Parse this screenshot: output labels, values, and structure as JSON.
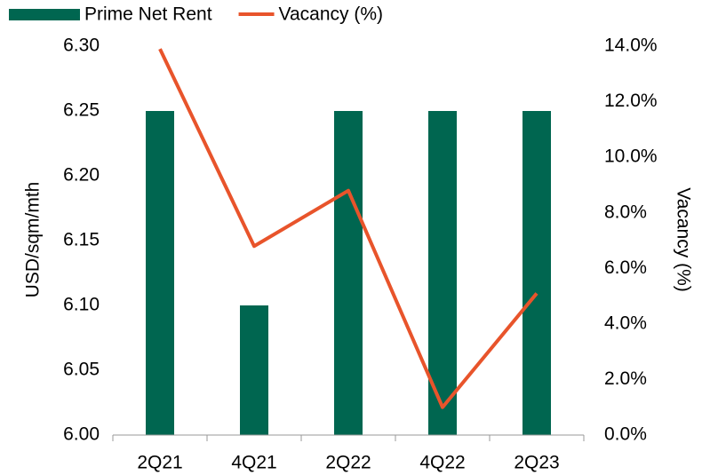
{
  "chart_data": {
    "type": "bar_line",
    "categories": [
      "2Q21",
      "4Q21",
      "2Q22",
      "4Q22",
      "2Q23"
    ],
    "series": [
      {
        "name": "Prime Net Rent",
        "color": "#006650",
        "type": "bar",
        "values": [
          6.25,
          6.1,
          6.25,
          6.25,
          6.25
        ]
      },
      {
        "name": "Vacancy (%)",
        "color": "#e8542b",
        "type": "line",
        "axis": "y2",
        "values": [
          13.9,
          6.8,
          8.8,
          1.0,
          5.1
        ]
      }
    ],
    "ylabel": "USD/sqm/mth",
    "y2label": "Vacancy (%)",
    "ylim": [
      6.0,
      6.3
    ],
    "yticks": [
      {
        "value": 6.0,
        "label": "6.00"
      },
      6.05,
      {
        "value": 6.1,
        "label": "6.10"
      },
      6.15,
      {
        "value": 6.2,
        "label": "6.20"
      },
      6.25,
      {
        "value": 6.3,
        "label": "6.30"
      }
    ],
    "y2lim": [
      0,
      14
    ],
    "y2ticks": [
      {
        "value": 0,
        "label": "0.0%"
      },
      {
        "value": 2,
        "label": "2.0%"
      },
      {
        "value": 4,
        "label": "4.0%"
      },
      {
        "value": 6,
        "label": "6.0%"
      },
      {
        "value": 8,
        "label": "8.0%"
      },
      {
        "value": 10,
        "label": "10.0%"
      },
      {
        "value": 12,
        "label": "12.0%"
      },
      {
        "value": 14,
        "label": "14.0%"
      }
    ],
    "legend": "top-left"
  }
}
